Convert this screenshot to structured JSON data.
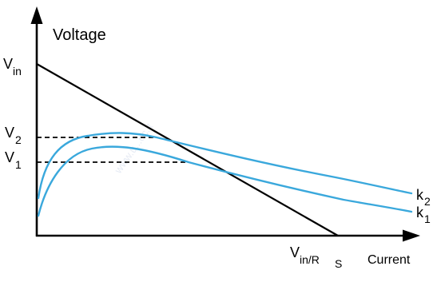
{
  "diagram": {
    "y_axis_label": "Voltage",
    "x_axis_label": "Current",
    "vin": {
      "base": "V",
      "sub": "in"
    },
    "v2": {
      "base": "V",
      "sub": "2"
    },
    "v1": {
      "base": "V",
      "sub": "1"
    },
    "vin_rs": {
      "base": "V",
      "sub1": "in/R",
      "sub2": "S"
    },
    "k2": {
      "base": "k",
      "sub": "2"
    },
    "k1": {
      "base": "k",
      "sub": "1"
    },
    "watermark": "www.u...oc.it",
    "curve_color": "#3aa8dc",
    "axis_color": "#000000"
  }
}
